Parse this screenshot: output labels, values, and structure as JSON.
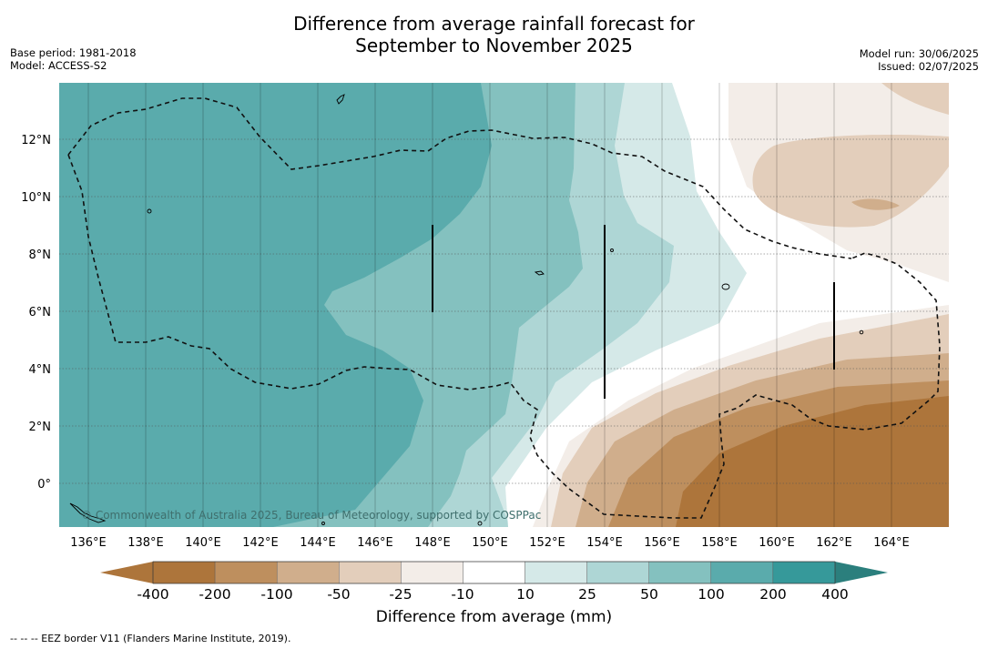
{
  "title_line1": "Difference from average rainfall forecast for",
  "title_line2": "September to November 2025",
  "base_period": "Base period: 1981-2018",
  "model": "Model: ACCESS-S2",
  "model_run": "Model run: 30/06/2025",
  "issued": "Issued: 02/07/2025",
  "copyright": "© Commonwealth of Australia 2025, Bureau of Meteorology, supported by COSPPac",
  "colorbar_title": "Difference from average (mm)",
  "footnote": "--  --  -- EEZ border V11 (Flanders Marine Institute, 2019).",
  "lon_labels": [
    "136°E",
    "138°E",
    "140°E",
    "142°E",
    "144°E",
    "146°E",
    "148°E",
    "150°E",
    "152°E",
    "154°E",
    "156°E",
    "158°E",
    "160°E",
    "162°E",
    "164°E"
  ],
  "lat_labels": [
    "12°N",
    "10°N",
    "8°N",
    "6°N",
    "4°N",
    "2°N",
    "0°"
  ],
  "colorbar": {
    "levels": [
      "-400",
      "-200",
      "-100",
      "-50",
      "-25",
      "-10",
      "10",
      "25",
      "50",
      "100",
      "200",
      "400"
    ],
    "colors": [
      "#ad753b",
      "#be8f5e",
      "#d0ae8c",
      "#e3cebb",
      "#f3ede8",
      "#ffffff",
      "#d5e9e8",
      "#aed6d5",
      "#84c1bf",
      "#5aabac",
      "#36999a",
      "#2b7f7d"
    ]
  },
  "chart_data": {
    "type": "map",
    "lon_range": [
      "135°E",
      "166°E"
    ],
    "lat_range": [
      "1.5°S",
      "14°N"
    ],
    "units": "mm",
    "pattern": "Wetter than average (+100 to +200 mm) over the west and north-west; drier than average (-100 to -400 mm) in the south-east near 156°E–166°E, 1°S–3°N."
  }
}
